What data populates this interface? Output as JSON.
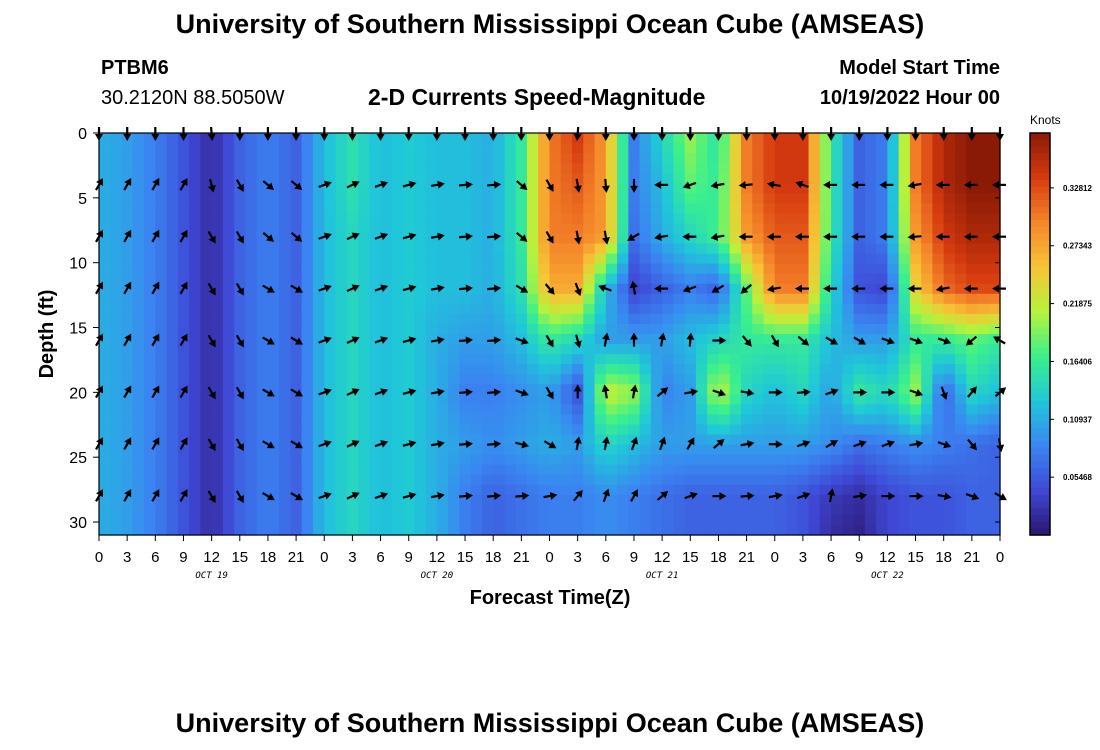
{
  "header": {
    "title": "University of Southern Mississippi Ocean Cube (AMSEAS)",
    "station_id": "PTBM6",
    "station_coords": "30.2120N  88.5050W",
    "plot_title": "2-D Currents Speed-Magnitude",
    "model_start_label": "Model Start Time",
    "model_start_value": "10/19/2022 Hour 00"
  },
  "footer": {
    "title": "University of Southern Mississippi Ocean Cube (AMSEAS)"
  },
  "chart_data": {
    "type": "heatmap",
    "xlabel": "Forecast Time(Z)",
    "ylabel": "Depth (ft)",
    "x_hours": [
      0,
      96
    ],
    "x_tick_labels": [
      "0",
      "3",
      "6",
      "9",
      "12",
      "15",
      "18",
      "21",
      "0",
      "3",
      "6",
      "9",
      "12",
      "15",
      "18",
      "21",
      "0",
      "3",
      "6",
      "9",
      "12",
      "15",
      "18",
      "21",
      "0",
      "3",
      "6",
      "9",
      "12",
      "15",
      "18",
      "21",
      "0"
    ],
    "day_labels": [
      {
        "label": "OCT 19",
        "hour": 12
      },
      {
        "label": "OCT 20",
        "hour": 36
      },
      {
        "label": "OCT 21",
        "hour": 60
      },
      {
        "label": "OCT 22",
        "hour": 84
      }
    ],
    "y_ticks": [
      0,
      5,
      10,
      15,
      20,
      25,
      30
    ],
    "ylim": [
      0,
      31
    ],
    "y_inverted": true,
    "colorbar": {
      "title": "Knots",
      "min": 0,
      "max": 0.38,
      "tick_values": [
        0.05468,
        0.10937,
        0.16406,
        0.21875,
        0.27343,
        0.32812
      ],
      "tick_labels": [
        "0.05468",
        "0.10937",
        "0.16406",
        "0.21875",
        "0.27343",
        "0.32812"
      ],
      "colors": [
        "#2c1670",
        "#3f48d6",
        "#3a86f2",
        "#1fc8d8",
        "#3bf08c",
        "#b8f23a",
        "#f7c436",
        "#f5852a",
        "#d63a0f",
        "#8a1a06"
      ]
    },
    "speed_knots": {
      "time_hours": [
        0,
        3,
        6,
        9,
        12,
        15,
        18,
        21,
        24,
        27,
        30,
        33,
        36,
        39,
        42,
        45,
        48,
        51,
        54,
        57,
        60,
        63,
        66,
        69,
        72,
        75,
        78,
        81,
        84,
        87,
        90,
        93,
        96
      ],
      "depth_ft": [
        0,
        4,
        8,
        12,
        16,
        20,
        24,
        28,
        31
      ],
      "rows": [
        [
          0.11,
          0.1,
          0.08,
          0.05,
          0.02,
          0.06,
          0.08,
          0.06,
          0.12,
          0.15,
          0.12,
          0.13,
          0.12,
          0.12,
          0.11,
          0.16,
          0.3,
          0.34,
          0.28,
          0.08,
          0.14,
          0.2,
          0.15,
          0.3,
          0.34,
          0.34,
          0.16,
          0.06,
          0.08,
          0.3,
          0.36,
          0.38,
          0.38
        ],
        [
          0.11,
          0.1,
          0.08,
          0.05,
          0.02,
          0.06,
          0.08,
          0.06,
          0.12,
          0.15,
          0.12,
          0.13,
          0.12,
          0.12,
          0.11,
          0.16,
          0.3,
          0.32,
          0.28,
          0.08,
          0.12,
          0.18,
          0.16,
          0.3,
          0.34,
          0.34,
          0.16,
          0.06,
          0.08,
          0.3,
          0.36,
          0.38,
          0.38
        ],
        [
          0.11,
          0.1,
          0.08,
          0.05,
          0.02,
          0.06,
          0.08,
          0.06,
          0.12,
          0.14,
          0.12,
          0.13,
          0.12,
          0.12,
          0.11,
          0.16,
          0.3,
          0.3,
          0.28,
          0.07,
          0.11,
          0.14,
          0.17,
          0.28,
          0.32,
          0.32,
          0.16,
          0.06,
          0.08,
          0.28,
          0.34,
          0.36,
          0.36
        ],
        [
          0.11,
          0.1,
          0.08,
          0.05,
          0.02,
          0.06,
          0.08,
          0.06,
          0.12,
          0.14,
          0.12,
          0.13,
          0.12,
          0.12,
          0.11,
          0.15,
          0.27,
          0.27,
          0.12,
          0.04,
          0.06,
          0.08,
          0.06,
          0.18,
          0.3,
          0.3,
          0.14,
          0.05,
          0.04,
          0.24,
          0.31,
          0.33,
          0.33
        ],
        [
          0.11,
          0.1,
          0.08,
          0.05,
          0.02,
          0.06,
          0.08,
          0.06,
          0.12,
          0.14,
          0.12,
          0.13,
          0.11,
          0.1,
          0.1,
          0.12,
          0.16,
          0.14,
          0.1,
          0.1,
          0.1,
          0.12,
          0.14,
          0.16,
          0.16,
          0.16,
          0.12,
          0.1,
          0.1,
          0.16,
          0.16,
          0.18,
          0.16
        ],
        [
          0.11,
          0.1,
          0.08,
          0.05,
          0.02,
          0.06,
          0.08,
          0.06,
          0.12,
          0.14,
          0.12,
          0.13,
          0.11,
          0.08,
          0.08,
          0.09,
          0.1,
          0.05,
          0.22,
          0.2,
          0.08,
          0.1,
          0.22,
          0.14,
          0.12,
          0.14,
          0.1,
          0.16,
          0.14,
          0.2,
          0.06,
          0.14,
          0.12
        ],
        [
          0.11,
          0.1,
          0.08,
          0.05,
          0.02,
          0.06,
          0.08,
          0.06,
          0.12,
          0.14,
          0.12,
          0.13,
          0.11,
          0.1,
          0.09,
          0.1,
          0.11,
          0.1,
          0.14,
          0.12,
          0.1,
          0.1,
          0.1,
          0.1,
          0.1,
          0.1,
          0.09,
          0.07,
          0.08,
          0.09,
          0.08,
          0.07,
          0.06
        ],
        [
          0.11,
          0.1,
          0.08,
          0.05,
          0.02,
          0.06,
          0.08,
          0.06,
          0.12,
          0.14,
          0.12,
          0.13,
          0.11,
          0.08,
          0.06,
          0.07,
          0.08,
          0.08,
          0.09,
          0.08,
          0.07,
          0.06,
          0.06,
          0.06,
          0.06,
          0.05,
          0.03,
          0.02,
          0.04,
          0.05,
          0.05,
          0.06,
          0.06
        ],
        [
          0.11,
          0.1,
          0.08,
          0.05,
          0.02,
          0.06,
          0.08,
          0.06,
          0.12,
          0.14,
          0.12,
          0.13,
          0.11,
          0.08,
          0.06,
          0.07,
          0.08,
          0.08,
          0.09,
          0.08,
          0.07,
          0.06,
          0.06,
          0.06,
          0.06,
          0.05,
          0.02,
          0.01,
          0.04,
          0.05,
          0.05,
          0.06,
          0.06
        ]
      ]
    },
    "vectors": {
      "time_hours": [
        0,
        3,
        6,
        9,
        12,
        15,
        18,
        21,
        24,
        27,
        30,
        33,
        36,
        39,
        42,
        45,
        48,
        51,
        54,
        57,
        60,
        63,
        66,
        69,
        72,
        75,
        78,
        81,
        84,
        87,
        90,
        93,
        96
      ],
      "depth_ft": [
        0,
        4,
        8,
        12,
        16,
        20,
        24,
        28
      ],
      "direction_deg_ccw_from_east": [
        [
          270,
          270,
          270,
          270,
          275,
          270,
          270,
          270,
          270,
          270,
          270,
          270,
          270,
          270,
          270,
          270,
          270,
          265,
          270,
          270,
          270,
          270,
          270,
          270,
          270,
          270,
          270,
          270,
          270,
          270,
          270,
          270,
          270
        ],
        [
          60,
          60,
          60,
          60,
          285,
          300,
          320,
          320,
          20,
          25,
          20,
          15,
          10,
          5,
          5,
          320,
          300,
          280,
          275,
          270,
          180,
          200,
          190,
          185,
          170,
          160,
          180,
          180,
          180,
          190,
          180,
          180,
          180
        ],
        [
          60,
          60,
          60,
          60,
          300,
          300,
          320,
          320,
          20,
          25,
          20,
          15,
          10,
          5,
          5,
          320,
          300,
          280,
          280,
          210,
          190,
          180,
          190,
          180,
          180,
          180,
          180,
          180,
          180,
          185,
          180,
          180,
          180
        ],
        [
          60,
          60,
          60,
          60,
          300,
          300,
          330,
          330,
          20,
          25,
          20,
          15,
          10,
          5,
          5,
          330,
          310,
          290,
          160,
          100,
          180,
          200,
          210,
          220,
          190,
          180,
          180,
          180,
          180,
          180,
          190,
          180,
          180
        ],
        [
          60,
          60,
          60,
          60,
          300,
          300,
          330,
          330,
          20,
          25,
          20,
          15,
          10,
          5,
          5,
          340,
          300,
          285,
          80,
          90,
          80,
          85,
          0,
          310,
          300,
          320,
          330,
          330,
          340,
          340,
          340,
          220,
          150
        ],
        [
          60,
          60,
          60,
          60,
          300,
          300,
          330,
          330,
          20,
          25,
          20,
          15,
          10,
          5,
          5,
          340,
          300,
          90,
          100,
          80,
          40,
          10,
          340,
          350,
          0,
          5,
          20,
          0,
          0,
          340,
          290,
          50,
          40
        ],
        [
          60,
          60,
          60,
          60,
          300,
          300,
          330,
          330,
          20,
          25,
          20,
          15,
          10,
          5,
          5,
          345,
          330,
          80,
          80,
          70,
          70,
          60,
          40,
          10,
          0,
          20,
          30,
          20,
          20,
          10,
          340,
          310,
          280
        ],
        [
          60,
          60,
          60,
          60,
          300,
          300,
          330,
          330,
          20,
          25,
          20,
          15,
          10,
          5,
          5,
          5,
          10,
          50,
          70,
          60,
          40,
          20,
          0,
          5,
          10,
          20,
          80,
          10,
          0,
          0,
          350,
          340,
          330
        ]
      ]
    }
  }
}
